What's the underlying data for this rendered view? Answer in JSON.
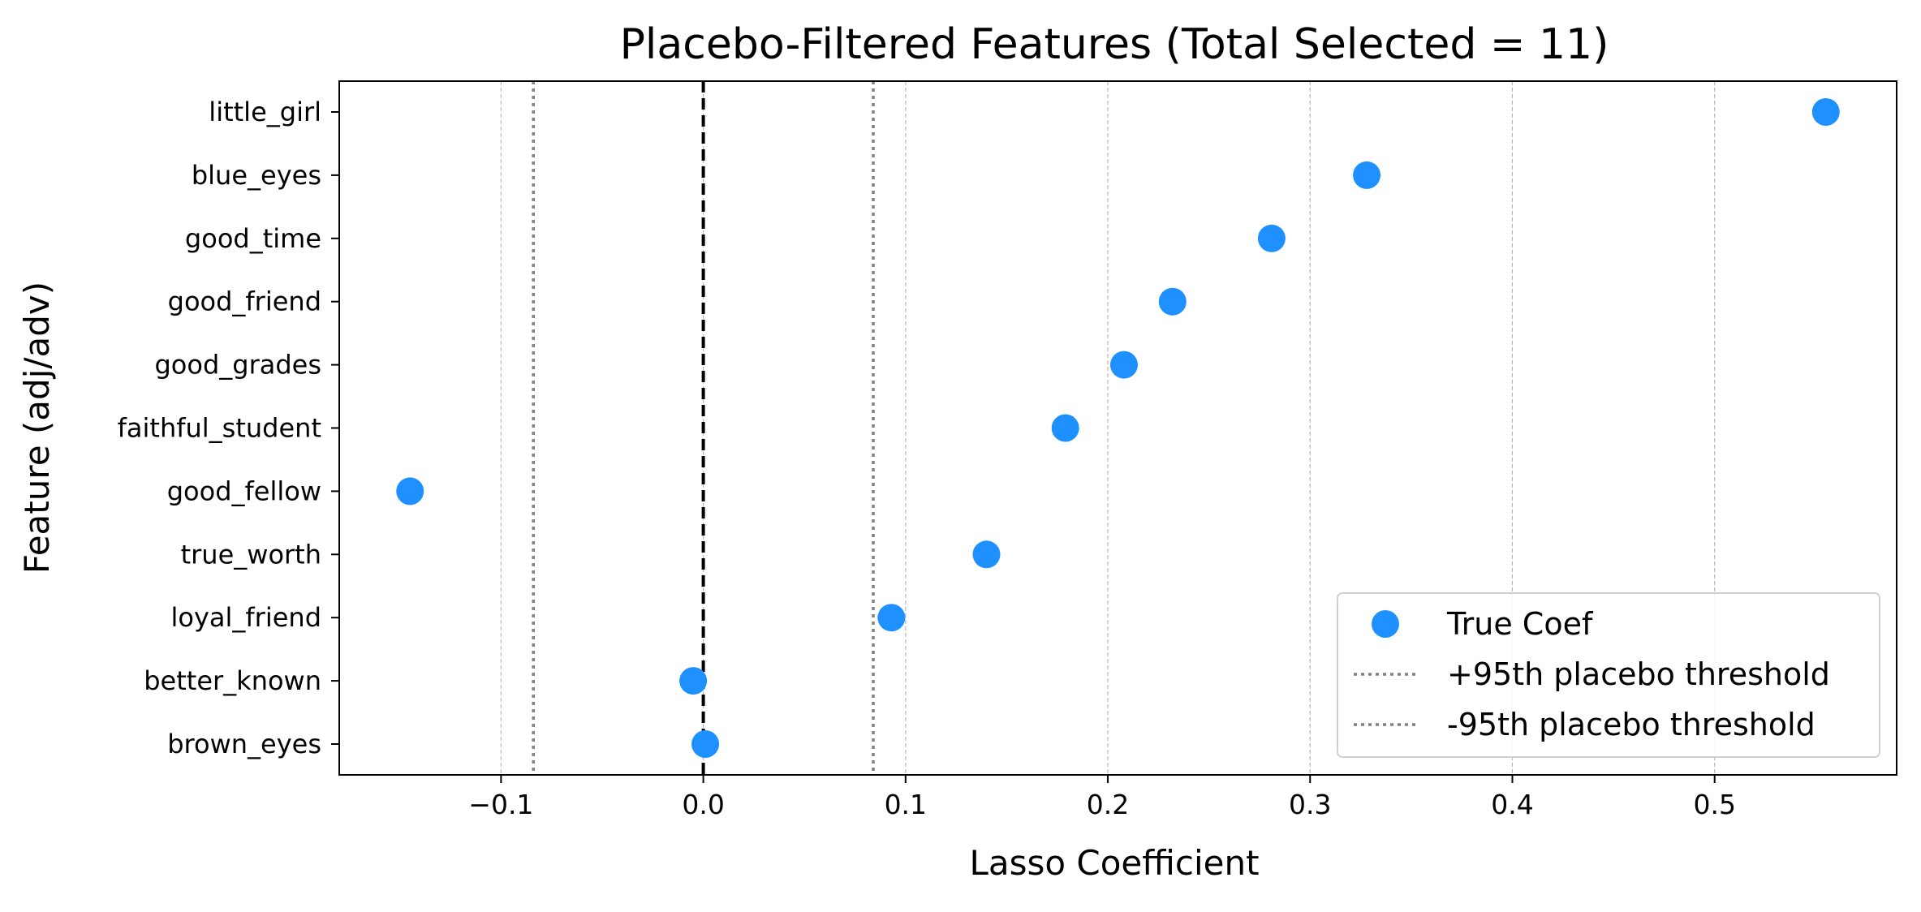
{
  "chart_data": {
    "type": "scatter",
    "title": "Placebo-Filtered Features (Total Selected = 11)",
    "xlabel": "Lasso Coefficient",
    "ylabel": "Feature (adj/adv)",
    "xlim": [
      -0.18,
      0.59
    ],
    "x_ticks": [
      -0.1,
      0.0,
      0.1,
      0.2,
      0.3,
      0.4,
      0.5
    ],
    "x_tick_labels": [
      "−0.1",
      "0.0",
      "0.1",
      "0.2",
      "0.3",
      "0.4",
      "0.5"
    ],
    "grid": "vertical dashed",
    "categories": [
      "little_girl",
      "blue_eyes",
      "good_time",
      "good_friend",
      "good_grades",
      "faithful_student",
      "good_fellow",
      "true_worth",
      "loyal_friend",
      "better_known",
      "brown_eyes"
    ],
    "series": [
      {
        "name": "True Coef",
        "color": "#1e90ff",
        "values": [
          0.555,
          0.328,
          0.281,
          0.232,
          0.208,
          0.179,
          -0.145,
          0.14,
          0.093,
          -0.005,
          0.001
        ]
      }
    ],
    "reference_lines": [
      {
        "name": "zero",
        "x": 0.0,
        "style": "dashed",
        "color": "#000000"
      },
      {
        "name": "+95th placebo threshold",
        "x": 0.084,
        "style": "dotted",
        "color": "#808080"
      },
      {
        "name": "-95th placebo threshold",
        "x": -0.084,
        "style": "dotted",
        "color": "#808080"
      }
    ],
    "legend": {
      "position": "lower-right",
      "entries": [
        "True Coef",
        "+95th placebo threshold",
        "-95th placebo threshold"
      ]
    }
  }
}
